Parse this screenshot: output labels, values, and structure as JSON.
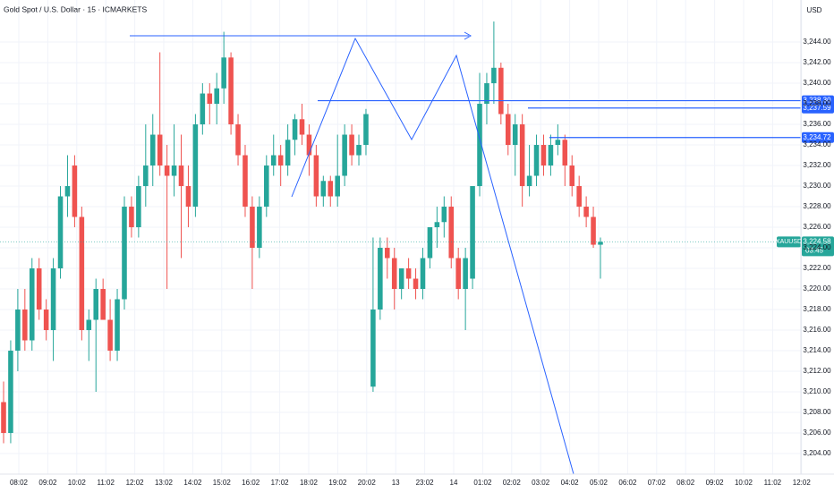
{
  "chart_data": {
    "type": "candlestick",
    "title": "Gold Spot / U.S. Dollar · 15 · ICMARKETS",
    "currency": "USD",
    "x_labels": [
      "08:02",
      "09:02",
      "10:02",
      "11:02",
      "12:02",
      "13:02",
      "14:02",
      "15:02",
      "16:02",
      "17:02",
      "18:02",
      "19:02",
      "20:02",
      "13",
      "23:02",
      "14",
      "01:02",
      "02:02",
      "03:02",
      "04:02",
      "05:02",
      "06:02",
      "07:02",
      "08:02",
      "09:02",
      "10:02",
      "11:02",
      "12:02"
    ],
    "series": {
      "up_color": "#26a69a",
      "down_color": "#ef5350",
      "open": [
        3209,
        3206,
        3214,
        3218,
        3215,
        3222,
        3218,
        3216,
        3222,
        3229,
        3232,
        3227,
        3216,
        3217,
        3220,
        3217,
        3214,
        3219,
        3228,
        3226,
        3230,
        3232,
        3235,
        3232,
        3231,
        3232,
        3230,
        3228,
        3236,
        3239,
        3238,
        3239.5,
        3242.5,
        3236,
        3233,
        3228,
        3224,
        3228,
        3232,
        3233,
        3232,
        3234.5,
        3236.5,
        3235,
        3233,
        3229,
        3230.5,
        3229,
        3231,
        3235,
        3233,
        3234,
        3210.5,
        3218,
        3224,
        3223,
        3220,
        3222,
        3221,
        3220,
        3223,
        3226,
        3226.5,
        3228,
        3223,
        3220,
        3221,
        3230,
        3238,
        3240,
        3241.5,
        3237,
        3234,
        3236,
        3230,
        3231,
        3234,
        3232,
        3234,
        3234.5,
        3232,
        3230,
        3228,
        3227,
        3224.3
      ],
      "high": [
        3211,
        3215,
        3220,
        3220,
        3223,
        3223,
        3219,
        3223,
        3230,
        3233,
        3233,
        3228,
        3218,
        3221,
        3221,
        3219,
        3220,
        3229,
        3229,
        3231,
        3236,
        3237,
        3243,
        3234,
        3236,
        3235,
        3232,
        3237,
        3240,
        3240,
        3241,
        3245,
        3243,
        3237,
        3234,
        3229,
        3229,
        3233,
        3235,
        3234,
        3236,
        3237,
        3238,
        3236,
        3234,
        3231,
        3231,
        3235,
        3236,
        3236,
        3235,
        3237.5,
        3225,
        3225,
        3225,
        3224,
        3222,
        3223,
        3222,
        3224,
        3226,
        3228,
        3229,
        3229,
        3224,
        3224,
        3230,
        3241,
        3241,
        3246,
        3242,
        3238,
        3237,
        3237,
        3234,
        3235,
        3235,
        3235,
        3236,
        3235,
        3233,
        3231,
        3229,
        3228,
        3225
      ],
      "low": [
        3205,
        3205,
        3212,
        3214,
        3214,
        3217,
        3215,
        3213,
        3221,
        3227,
        3226,
        3215,
        3213,
        3210,
        3217,
        3213,
        3213,
        3218,
        3225,
        3225,
        3228,
        3230,
        3231,
        3220,
        3229,
        3223,
        3226,
        3227,
        3235,
        3236,
        3236,
        3238,
        3235,
        3232,
        3227,
        3220,
        3223,
        3227,
        3231,
        3230,
        3231,
        3233,
        3234,
        3231,
        3228,
        3228,
        3228,
        3228,
        3230,
        3232,
        3232,
        3233,
        3210,
        3217,
        3221,
        3218,
        3219,
        3220,
        3219,
        3219,
        3222,
        3224,
        3225,
        3222,
        3219,
        3216,
        3220,
        3229,
        3236,
        3238,
        3236,
        3233,
        3231,
        3228,
        3229,
        3230,
        3231,
        3231,
        3233,
        3230,
        3229,
        3227,
        3226,
        3224,
        3221
      ],
      "close": [
        3206,
        3214,
        3218,
        3215,
        3222,
        3218,
        3216,
        3222,
        3229,
        3230,
        3227,
        3216,
        3217,
        3220,
        3217,
        3214,
        3219,
        3228,
        3226,
        3230,
        3232,
        3235,
        3232,
        3231,
        3232,
        3230,
        3228,
        3236,
        3239,
        3238,
        3239.5,
        3242.5,
        3236,
        3233,
        3228,
        3224,
        3228,
        3232,
        3233,
        3232,
        3234.5,
        3236.5,
        3235,
        3233,
        3229,
        3230.5,
        3229,
        3231,
        3235,
        3233,
        3234,
        3237,
        3218,
        3224,
        3223,
        3220,
        3222,
        3221,
        3220,
        3223,
        3226,
        3226.5,
        3228,
        3223,
        3220,
        3223,
        3230,
        3238,
        3240,
        3241.5,
        3237,
        3234,
        3236,
        3230,
        3231,
        3234,
        3232,
        3234,
        3234.5,
        3232,
        3230,
        3228,
        3227,
        3224.3,
        3224.58
      ]
    },
    "ylim": [
      3202,
      3248.09
    ],
    "yticks": [
      {
        "value": 3204,
        "label": "3,204.00"
      },
      {
        "value": 3206,
        "label": "3,206.00"
      },
      {
        "value": 3208,
        "label": "3,208.00"
      },
      {
        "value": 3210,
        "label": "3,210.00"
      },
      {
        "value": 3212,
        "label": "3,212.00"
      },
      {
        "value": 3214,
        "label": "3,214.00"
      },
      {
        "value": 3216,
        "label": "3,216.00"
      },
      {
        "value": 3218,
        "label": "3,218.00"
      },
      {
        "value": 3220,
        "label": "3,220.00"
      },
      {
        "value": 3222,
        "label": "3,222.00"
      },
      {
        "value": 3224,
        "label": "3,224.00"
      },
      {
        "value": 3226,
        "label": "3,226.00"
      },
      {
        "value": 3228,
        "label": "3,228.00"
      },
      {
        "value": 3230,
        "label": "3,230.00"
      },
      {
        "value": 3232,
        "label": "3,232.00"
      },
      {
        "value": 3234,
        "label": "3,234.00"
      },
      {
        "value": 3236,
        "label": "3,236.00"
      },
      {
        "value": 3238,
        "label": "3,238.00"
      },
      {
        "value": 3240,
        "label": "3,240.00"
      },
      {
        "value": 3242,
        "label": "3,242.00"
      },
      {
        "value": 3244,
        "label": "3,244.00"
      }
    ],
    "levels": [
      {
        "value": 3238.3,
        "label": "3,238.30",
        "color": "#2962ff"
      },
      {
        "value": 3237.59,
        "label": "3,237.59",
        "color": "#2962ff"
      },
      {
        "value": 3234.72,
        "label": "3,234.72",
        "color": "#2962ff"
      }
    ],
    "last_price": {
      "symbol": "XAUUSD",
      "value": 3224.58,
      "label": "3,224.58",
      "countdown": "03:45",
      "color": "#26a69a"
    },
    "grid": true
  }
}
